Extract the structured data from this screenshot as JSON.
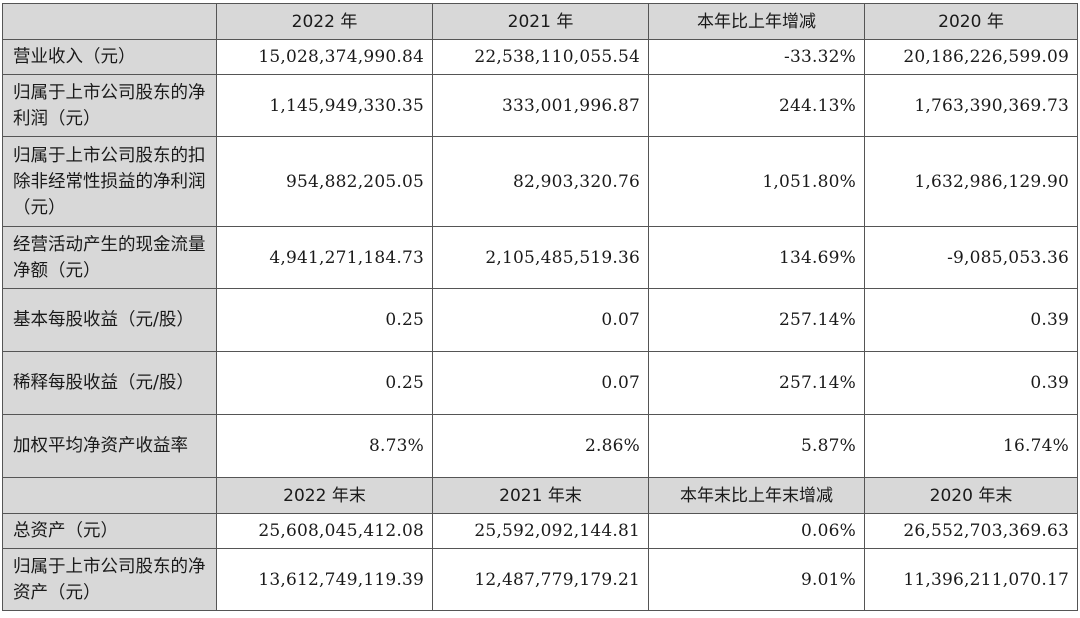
{
  "header1": [
    "2022 年",
    "2021 年",
    "本年比上年增减",
    "2020 年"
  ],
  "rows1": [
    {
      "label": "营业收入（元）",
      "values": [
        "15,028,374,990.84",
        "22,538,110,055.54",
        "-33.32%",
        "20,186,226,599.09"
      ]
    },
    {
      "label": "归属于上市公司股东的净利润（元）",
      "values": [
        "1,145,949,330.35",
        "333,001,996.87",
        "244.13%",
        "1,763,390,369.73"
      ]
    },
    {
      "label": "归属于上市公司股东的扣除非经常性损益的净利润（元）",
      "values": [
        "954,882,205.05",
        "82,903,320.76",
        "1,051.80%",
        "1,632,986,129.90"
      ]
    },
    {
      "label": "经营活动产生的现金流量净额（元）",
      "values": [
        "4,941,271,184.73",
        "2,105,485,519.36",
        "134.69%",
        "-9,085,053.36"
      ]
    },
    {
      "label": "基本每股收益（元/股）",
      "values": [
        "0.25",
        "0.07",
        "257.14%",
        "0.39"
      ]
    },
    {
      "label": "稀释每股收益（元/股）",
      "values": [
        "0.25",
        "0.07",
        "257.14%",
        "0.39"
      ]
    },
    {
      "label": "加权平均净资产收益率",
      "values": [
        "8.73%",
        "2.86%",
        "5.87%",
        "16.74%"
      ]
    }
  ],
  "header2": [
    "2022 年末",
    "2021 年末",
    "本年末比上年末增减",
    "2020 年末"
  ],
  "rows2": [
    {
      "label": "总资产（元）",
      "values": [
        "25,608,045,412.08",
        "25,592,092,144.81",
        "0.06%",
        "26,552,703,369.63"
      ]
    },
    {
      "label": "归属于上市公司股东的净资产（元）",
      "values": [
        "13,612,749,119.39",
        "12,487,779,179.21",
        "9.01%",
        "11,396,211,070.17"
      ]
    }
  ]
}
